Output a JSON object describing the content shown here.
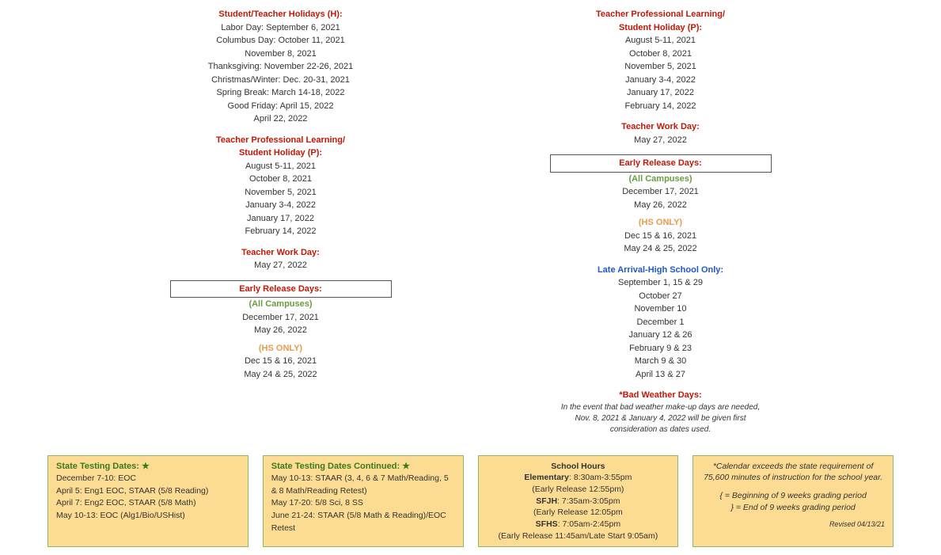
{
  "left": {
    "holidays_title": "Student/Teacher Holidays (H):",
    "holidays": [
      "Labor Day: September 6, 2021",
      "Columbus Day: October 11, 2021",
      "November 8, 2021",
      "Thanksgiving: November 22-26, 2021",
      "Christmas/Winter: Dec. 20-31, 2021",
      "Spring Break: March 14-18, 2022",
      "Good Friday: April 15, 2022",
      "April 22, 2022"
    ],
    "tpl_title1": "Teacher Professional Learning/",
    "tpl_title2": "Student Holiday (P):",
    "tpl": [
      "August 5-11, 2021",
      "October 8, 2021",
      "November 5, 2021",
      "January 3-4, 2022",
      "January 17, 2022",
      "February 14, 2022"
    ],
    "workday_title": "Teacher Work Day:",
    "workday": "May 27, 2022",
    "erd_title": "Early Release Days:",
    "erd_all_title": "(All Campuses)",
    "erd_all": [
      "December 17, 2021",
      "May 26, 2022"
    ],
    "erd_hs_title": "(HS ONLY)",
    "erd_hs": [
      "Dec 15 & 16, 2021",
      "May 24 & 25, 2022"
    ]
  },
  "right": {
    "tpl_title1": "Teacher Professional Learning/",
    "tpl_title2": "Student Holiday (P):",
    "tpl": [
      "August 5-11, 2021",
      "October 8, 2021",
      "November 5, 2021",
      "January 3-4, 2022",
      "January 17, 2022",
      "February 14, 2022"
    ],
    "workday_title": "Teacher Work Day:",
    "workday": "May 27, 2022",
    "erd_title": "Early Release Days:",
    "erd_all_title": "(All Campuses)",
    "erd_all": [
      "December 17, 2021",
      "May 26, 2022"
    ],
    "erd_hs_title": "(HS ONLY)",
    "erd_hs": [
      "Dec 15 & 16, 2021",
      "May 24 & 25, 2022"
    ],
    "late_title": "Late Arrival-High School Only:",
    "late": [
      "September 1, 15 & 29",
      "October 27",
      "November 10",
      "December 1",
      "January 12 & 26",
      "February 9 & 23",
      "March 9 & 30",
      "April 13 & 27"
    ],
    "bw_title": "*Bad Weather Days:",
    "bw_note1": "In the event that bad weather make-up days are needed,",
    "bw_note2": "Nov. 8, 2021 & January 4, 2022 will be given first",
    "bw_note3": "consideration as dates used."
  },
  "cards": {
    "c1_title": "State Testing Dates: ★",
    "c1_lines": [
      "December 7-10: EOC",
      "April 5: Eng1 EOC, STAAR (5/8 Reading)",
      "April 7: Eng2 EOC, STAAR (5/8 Math)",
      "May 10-13: EOC (Alg1/Bio/USHist)"
    ],
    "c2_title": "State Testing Dates Continued: ★",
    "c2_lines": [
      "May 10-13: STAAR (3, 4, 6 & 7 Math/Reading, 5 & 8 Math/Reading Retest)",
      "May 17-20: 5/8 Sci, 8 SS",
      "June 21-24: STAAR (5/8 Math & Reading)/EOC Retest"
    ],
    "c3_title": "School Hours",
    "c3_elem_label": "Elementary",
    "c3_elem": ": 8:30am-3:55pm",
    "c3_elem_er": "(Early Release 12:55pm)",
    "c3_jh_label": "SFJH",
    "c3_jh": ": 7:35am-3:05pm",
    "c3_jh_er": "(Early Release 12:05pm",
    "c3_hs_label": "SFHS",
    "c3_hs": ": 7:05am-2:45pm",
    "c3_hs_er": "(Early Release 11:45am/Late Start 9:05am)",
    "c4_note1": "*Calendar exceeds the state requirement of 75,600 minutes of instruction for the school year.",
    "c4_note2": "{ = Beginning of 9 weeks grading period",
    "c4_note3": "} = End of 9 weeks grading period",
    "c4_revised": "Revised 04/13/21"
  }
}
